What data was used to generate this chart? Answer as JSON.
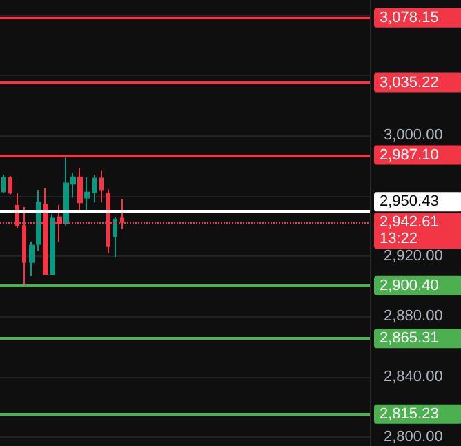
{
  "chart_data": {
    "type": "candlestick",
    "categories": [
      null,
      null,
      null,
      null,
      null,
      null,
      null,
      null,
      null,
      null,
      null,
      null,
      null,
      null,
      null,
      null,
      null,
      null,
      null,
      null,
      null,
      null,
      null,
      null,
      null,
      null,
      null,
      null,
      null,
      null,
      null,
      null,
      null,
      null,
      null,
      null,
      null,
      null,
      null,
      null,
      null,
      null,
      null,
      null,
      null,
      null,
      null,
      null,
      null,
      null,
      null,
      null,
      null
    ],
    "ohlc": [
      [
        2963,
        2974,
        2962,
        2972
      ],
      [
        2972,
        2973,
        2961,
        2962
      ],
      [
        2953.5,
        2961.7,
        2938.8,
        2940.3
      ],
      [
        2940,
        2952.5,
        2900.5,
        2916
      ],
      [
        2916,
        2929.6,
        2906.7,
        2927
      ],
      [
        2928,
        2964,
        2923.5,
        2955.6
      ],
      [
        2954,
        2965.4,
        2907.6,
        2908
      ],
      [
        2908,
        2948,
        2907.6,
        2945
      ],
      [
        2945.8,
        2954,
        2929.6,
        2941.8
      ],
      [
        2941.8,
        2986.8,
        2940.3,
        2968.4
      ],
      [
        2968,
        2975.5,
        2958.7,
        2972.4
      ],
      [
        2972.4,
        2978.5,
        2948.9,
        2955.6
      ],
      [
        2958.7,
        2972.4,
        2950.1,
        2962.3
      ],
      [
        2962.3,
        2974,
        2955.6,
        2971.5
      ],
      [
        2971.5,
        2977,
        2955.6,
        2964.2
      ],
      [
        2961.7,
        2964.2,
        2922,
        2926.5
      ],
      [
        2933,
        2945.8,
        2919.5,
        2944.3
      ],
      [
        2945,
        2958,
        2938,
        2942.61
      ],
      null,
      null,
      null,
      null,
      null,
      null,
      null,
      null,
      null,
      null,
      null,
      null,
      null,
      null,
      null,
      null,
      null,
      null,
      null,
      null,
      null,
      null,
      null,
      null,
      null,
      null,
      null,
      null,
      null,
      null,
      null,
      null,
      null,
      null,
      null
    ],
    "colors": [
      "#089981",
      "#f23645",
      "#f23645",
      "#f23645",
      "#089981",
      "#089981",
      "#f23645",
      "#089981",
      "#f23645",
      "#089981",
      "#089981",
      "#f23645",
      "#089981",
      "#089981",
      "#f23645",
      "#f23645",
      "#089981",
      "#f23645",
      null,
      null,
      null,
      null,
      null,
      null,
      null,
      null,
      null,
      null,
      null,
      null,
      null,
      null,
      null,
      null,
      null,
      null,
      null,
      null,
      null,
      null,
      null,
      null,
      null,
      null,
      null,
      null,
      null,
      null,
      null,
      null,
      null,
      null,
      null
    ],
    "ylim": [
      2794,
      3090
    ],
    "yticks": [
      {
        "value": 2800,
        "label": "2,800.00"
      },
      {
        "value": 2840,
        "label": "2,840.00"
      },
      {
        "value": 2880,
        "label": "2,880.00"
      },
      {
        "value": 2900,
        "label": null
      },
      {
        "value": 2920,
        "label": "2,920.00"
      },
      {
        "value": 2960,
        "label": null
      },
      {
        "value": 3000,
        "label": "3,000.00"
      },
      {
        "value": 3040,
        "label": null
      },
      {
        "value": 3080,
        "label": null
      }
    ],
    "grid": "y",
    "tick_labels": "y",
    "ref_lines": [
      {
        "axis": "y",
        "value": 3078.15,
        "label": "3,078.15",
        "color": "#f23645",
        "line_style": "solid"
      },
      {
        "axis": "y",
        "value": 3035.22,
        "label": "3,035.22",
        "color": "#f23645",
        "line_style": "solid"
      },
      {
        "axis": "y",
        "value": 2987.1,
        "label": "2,987.10",
        "color": "#f23645",
        "line_style": "solid"
      },
      {
        "axis": "y",
        "value": 2950.43,
        "label": "2,950.43",
        "color": "#ffffff",
        "line_style": "solid"
      },
      {
        "axis": "y",
        "value": 2942.61,
        "label": "2,942.61\n13:22",
        "color": "#f23645",
        "line_style": "dotted"
      },
      {
        "axis": "y",
        "value": 2900.4,
        "label": "2,900.40",
        "color": "#4caf50",
        "line_style": "solid"
      },
      {
        "axis": "y",
        "value": 2865.31,
        "label": "2,865.31",
        "color": "#4caf50",
        "line_style": "solid"
      },
      {
        "axis": "y",
        "value": 2815.23,
        "label": "2,815.23",
        "color": "#4caf50",
        "line_style": "solid"
      }
    ]
  }
}
